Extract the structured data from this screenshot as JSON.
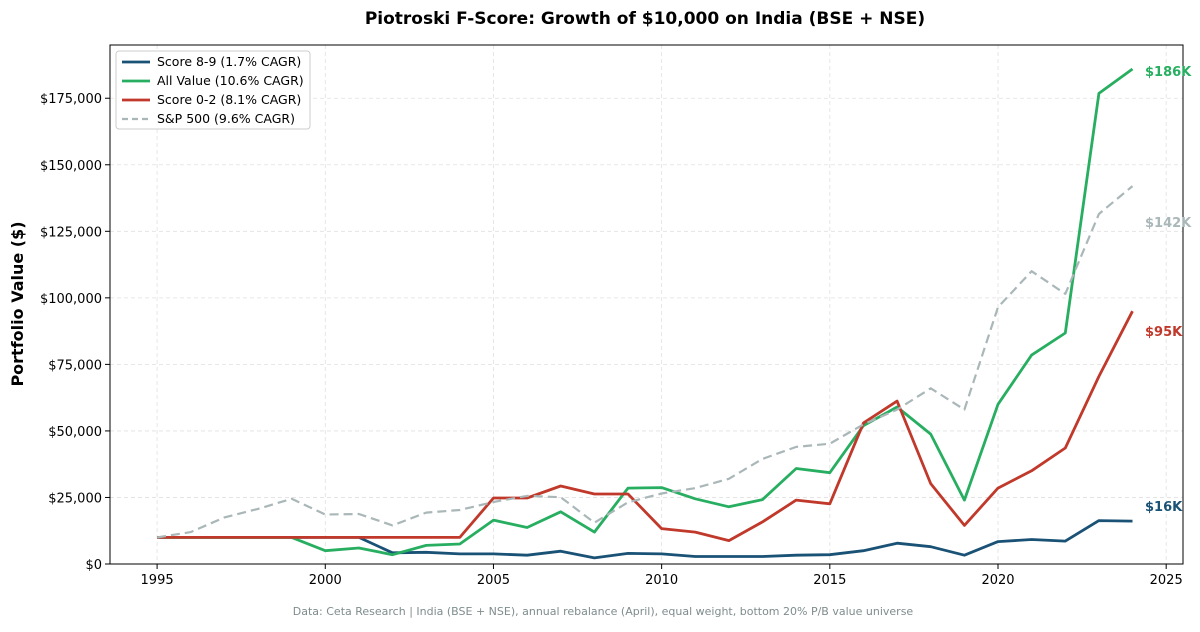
{
  "chart_data": {
    "type": "line",
    "title": "Piotroski F-Score: Growth of $10,000 on India (BSE + NSE)",
    "xlabel": "",
    "ylabel": "Portfolio Value ($)",
    "footnote": "Data: Ceta Research | India (BSE + NSE), annual rebalance (April), equal weight, bottom 20% P/B value universe",
    "xlim": [
      1993.6,
      2025.5
    ],
    "ylim": [
      0,
      195000
    ],
    "xticks": [
      1995,
      2000,
      2005,
      2010,
      2015,
      2020,
      2025
    ],
    "yticks": [
      0,
      25000,
      50000,
      75000,
      100000,
      125000,
      150000,
      175000
    ],
    "ytick_labels": [
      "$0",
      "$25,000",
      "$50,000",
      "$75,000",
      "$100,000",
      "$125,000",
      "$150,000",
      "$175,000"
    ],
    "grid": true,
    "legend_position": "top-left",
    "x": [
      1995,
      1996,
      1997,
      1998,
      1999,
      2000,
      2001,
      2002,
      2003,
      2004,
      2005,
      2006,
      2007,
      2008,
      2009,
      2010,
      2011,
      2012,
      2013,
      2014,
      2015,
      2016,
      2017,
      2018,
      2019,
      2020,
      2021,
      2022,
      2023,
      2024
    ],
    "series": [
      {
        "name": "Score 8-9 (1.7% CAGR)",
        "color": "#1a5276",
        "dashed": false,
        "end_label": "$16K",
        "values": [
          10000,
          10000,
          10000,
          10000,
          10000,
          10000,
          10000,
          4200,
          4400,
          3800,
          3800,
          3300,
          4800,
          2300,
          4000,
          3800,
          2800,
          2800,
          2800,
          3300,
          3500,
          5000,
          7800,
          6500,
          3300,
          8400,
          9200,
          8600,
          16300,
          16100
        ]
      },
      {
        "name": "All Value (10.6% CAGR)",
        "color": "#27ae60",
        "dashed": false,
        "end_label": "$186K",
        "values": [
          10000,
          10000,
          10000,
          10000,
          10000,
          5000,
          6000,
          3500,
          7000,
          7500,
          16500,
          13700,
          19600,
          12000,
          28500,
          28700,
          24500,
          21500,
          24200,
          35900,
          34300,
          52000,
          59000,
          48800,
          24000,
          60000,
          78500,
          86800,
          176800,
          186000
        ]
      },
      {
        "name": "Score 0-2 (8.1% CAGR)",
        "color": "#c0392b",
        "dashed": false,
        "end_label": "$95K",
        "values": [
          10000,
          10000,
          10000,
          10000,
          10000,
          10000,
          10000,
          10000,
          10000,
          10000,
          24800,
          24800,
          29300,
          26300,
          26300,
          13300,
          12000,
          8800,
          15800,
          24000,
          22600,
          53000,
          61200,
          30200,
          14500,
          28500,
          35000,
          43600,
          70500,
          95000
        ]
      },
      {
        "name": "S&P 500 (9.6% CAGR)",
        "color": "#aab7b8",
        "dashed": true,
        "end_label": "$142K",
        "values": [
          10000,
          12000,
          17500,
          20700,
          24500,
          18600,
          18800,
          14500,
          19300,
          20300,
          23300,
          25600,
          25100,
          15500,
          23200,
          26500,
          28500,
          32000,
          39500,
          44000,
          45200,
          52500,
          58000,
          66000,
          58000,
          96500,
          110000,
          101500,
          131500,
          142000
        ]
      }
    ]
  }
}
